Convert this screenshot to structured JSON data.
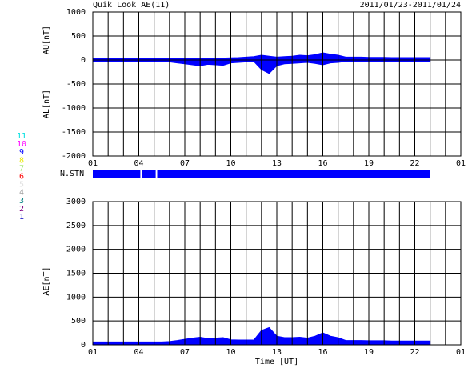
{
  "header": {
    "title": "Quik Look AE(11)",
    "date": "2011/01/23-2011/01/24"
  },
  "stations": {
    "labels": [
      "11",
      "10",
      "9",
      "8",
      "7",
      "6",
      "5",
      "4",
      "3",
      "2",
      "1"
    ],
    "colors": [
      "#00e0e0",
      "#ff00ff",
      "#0000ff",
      "#e8e800",
      "#80e040",
      "#ff0000",
      "#e0e0e0",
      "#a0a0a0",
      "#008080",
      "#800080",
      "#0000c0"
    ]
  },
  "chart_data": [
    {
      "type": "area",
      "y_labels": [
        "AU[nT]",
        "AL[nT]"
      ],
      "x": [
        0,
        0.5,
        1,
        1.5,
        2,
        2.5,
        3,
        3.5,
        4,
        4.5,
        5,
        5.5,
        6,
        6.5,
        7,
        7.5,
        8,
        8.5,
        9,
        9.5,
        10,
        10.5,
        11,
        11.5,
        12,
        12.5,
        13,
        13.5,
        14,
        14.5,
        15,
        15.5,
        16,
        16.5,
        17,
        17.5,
        18,
        18.5,
        19,
        19.5,
        20,
        20.5,
        21,
        21.5,
        22
      ],
      "series": [
        {
          "color": "#0000ff",
          "values": [
            30,
            30,
            30,
            30,
            30,
            30,
            30,
            30,
            30,
            30,
            30,
            30,
            35,
            40,
            40,
            40,
            40,
            40,
            45,
            50,
            60,
            70,
            100,
            80,
            60,
            70,
            80,
            100,
            90,
            110,
            150,
            120,
            100,
            60,
            60,
            60,
            55,
            55,
            55,
            50,
            50,
            50,
            50,
            50,
            50
          ]
        },
        {
          "color": "#0000ff",
          "values": [
            -30,
            -30,
            -30,
            -30,
            -30,
            -30,
            -30,
            -30,
            -30,
            -30,
            -40,
            -60,
            -80,
            -100,
            -120,
            -90,
            -100,
            -110,
            -60,
            -50,
            -40,
            -30,
            -200,
            -280,
            -120,
            -80,
            -70,
            -60,
            -50,
            -70,
            -100,
            -60,
            -50,
            -30,
            -30,
            -30,
            -30,
            -30,
            -30,
            -30,
            -30,
            -30,
            -30,
            -30,
            -30
          ]
        }
      ],
      "xlim": [
        0,
        24
      ],
      "xticks": [
        {
          "value": 0,
          "label": "01"
        },
        {
          "value": 3,
          "label": "04"
        },
        {
          "value": 6,
          "label": "07"
        },
        {
          "value": 9,
          "label": "10"
        },
        {
          "value": 12,
          "label": "13"
        },
        {
          "value": 15,
          "label": "16"
        },
        {
          "value": 18,
          "label": "19"
        },
        {
          "value": 21,
          "label": "22"
        },
        {
          "value": 24,
          "label": "01"
        }
      ],
      "xgrid": [
        0,
        1,
        2,
        3,
        4,
        5,
        6,
        7,
        8,
        9,
        10,
        11,
        12,
        13,
        14,
        15,
        16,
        17,
        18,
        19,
        20,
        21,
        22,
        23,
        24
      ],
      "ylim": [
        -2000,
        1000
      ],
      "yticks": [
        1000,
        500,
        0,
        -500,
        -1000,
        -1500,
        -2000
      ]
    },
    {
      "type": "segments",
      "label": "N.STN",
      "color": "#0000ff",
      "segments": [
        [
          0,
          3.1
        ],
        [
          3.2,
          4.1
        ],
        [
          4.2,
          22
        ]
      ],
      "xlim": [
        0,
        24
      ]
    },
    {
      "type": "area",
      "y_labels": [
        "AE[nT]"
      ],
      "x_label": "Time [UT]",
      "x": [
        0,
        0.5,
        1,
        1.5,
        2,
        2.5,
        3,
        3.5,
        4,
        4.5,
        5,
        5.5,
        6,
        6.5,
        7,
        7.5,
        8,
        8.5,
        9,
        9.5,
        10,
        10.5,
        11,
        11.5,
        12,
        12.5,
        13,
        13.5,
        14,
        14.5,
        15,
        15.5,
        16,
        16.5,
        17,
        17.5,
        18,
        18.5,
        19,
        19.5,
        20,
        20.5,
        21,
        21.5,
        22
      ],
      "series": [
        {
          "color": "#0000ff",
          "values": [
            60,
            60,
            60,
            60,
            60,
            60,
            60,
            60,
            60,
            60,
            70,
            90,
            115,
            140,
            160,
            130,
            140,
            150,
            105,
            100,
            100,
            100,
            300,
            360,
            180,
            150,
            150,
            160,
            140,
            180,
            250,
            180,
            150,
            90,
            90,
            90,
            85,
            85,
            85,
            80,
            80,
            80,
            80,
            80,
            80
          ]
        }
      ],
      "xlim": [
        0,
        24
      ],
      "xticks": [
        {
          "value": 0,
          "label": "01"
        },
        {
          "value": 3,
          "label": "04"
        },
        {
          "value": 6,
          "label": "07"
        },
        {
          "value": 9,
          "label": "10"
        },
        {
          "value": 12,
          "label": "13"
        },
        {
          "value": 15,
          "label": "16"
        },
        {
          "value": 18,
          "label": "19"
        },
        {
          "value": 21,
          "label": "22"
        },
        {
          "value": 24,
          "label": "01"
        }
      ],
      "xgrid": [
        0,
        1,
        2,
        3,
        4,
        5,
        6,
        7,
        8,
        9,
        10,
        11,
        12,
        13,
        14,
        15,
        16,
        17,
        18,
        19,
        20,
        21,
        22,
        23,
        24
      ],
      "ylim": [
        0,
        3000
      ],
      "yticks": [
        3000,
        2500,
        2000,
        1500,
        1000,
        500,
        0
      ]
    }
  ]
}
